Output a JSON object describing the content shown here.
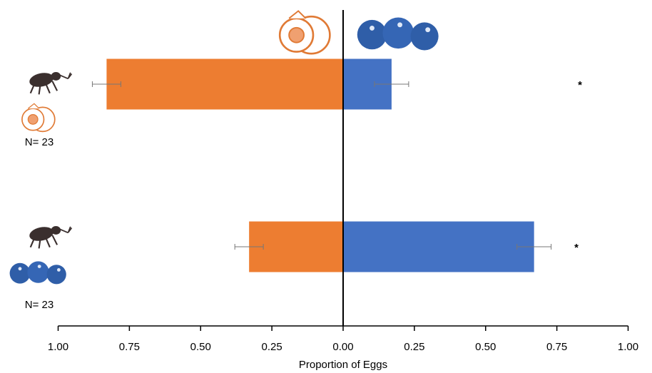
{
  "chart_data": {
    "type": "diverging_bar",
    "categories": [
      "N= 23",
      "N= 23"
    ],
    "series": [
      {
        "side": "left",
        "color": "#ed7d31",
        "values": [
          0.83,
          0.33
        ],
        "errors": [
          0.05,
          0.05
        ]
      },
      {
        "side": "right",
        "color": "#4472c4",
        "values": [
          0.17,
          0.67
        ],
        "errors": [
          0.06,
          0.06
        ]
      }
    ],
    "significance": [
      "*",
      "*"
    ],
    "xlim": [
      0,
      1
    ],
    "left_xticks": [
      {
        "value": 1,
        "label": "1.00"
      },
      {
        "value": 0.75,
        "label": "0.75"
      },
      {
        "value": 0.5,
        "label": "0.50"
      },
      {
        "value": 0.25,
        "label": "0.25"
      }
    ],
    "xticks": [
      {
        "value": 0,
        "label": "0.00"
      },
      {
        "value": 0.25,
        "label": "0.25"
      },
      {
        "value": 0.5,
        "label": "0.50"
      },
      {
        "value": 0.75,
        "label": "0.75"
      },
      {
        "value": 1,
        "label": "1.00"
      }
    ],
    "xlabel": "Proportion of Eggs"
  }
}
